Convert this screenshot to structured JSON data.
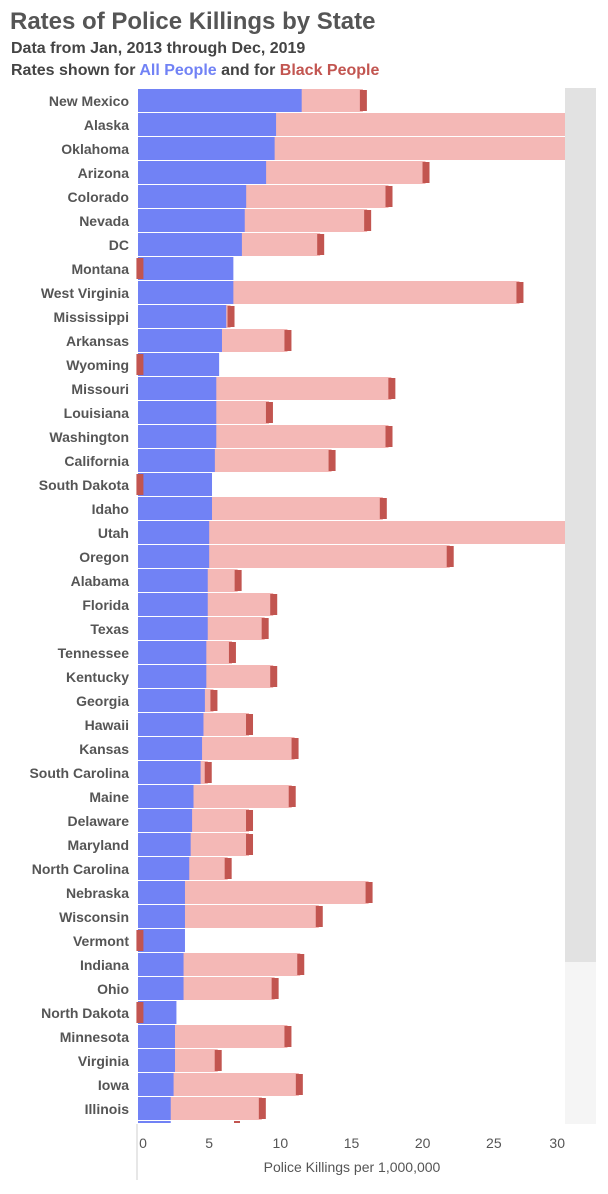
{
  "chart_data": {
    "type": "bar",
    "title": "Rates of Police Killings by State",
    "subtitle_line1": "Data from Jan, 2013 through Dec, 2019",
    "subtitle_prefix": "Rates shown for ",
    "subtitle_mid": " and for ",
    "xlabel": "Police Killings per 1,000,000",
    "xlim": [
      0,
      30
    ],
    "x_ticks": [
      "0",
      "5",
      "10",
      "15",
      "20",
      "25",
      "30"
    ],
    "x_tick_values": [
      0,
      5,
      10,
      15,
      20,
      25,
      30
    ],
    "orientation": "horizontal",
    "categories": [
      "New Mexico",
      "Alaska",
      "Oklahoma",
      "Arizona",
      "Colorado",
      "Nevada",
      "DC",
      "Montana",
      "West Virginia",
      "Mississippi",
      "Arkansas",
      "Wyoming",
      "Missouri",
      "Louisiana",
      "Washington",
      "California",
      "South Dakota",
      "Idaho",
      "Utah",
      "Oregon",
      "Alabama",
      "Florida",
      "Texas",
      "Tennessee",
      "Kentucky",
      "Georgia",
      "Hawaii",
      "Kansas",
      "South Carolina",
      "Maine",
      "Delaware",
      "Maryland",
      "North Carolina",
      "Nebraska",
      "Wisconsin",
      "Vermont",
      "Indiana",
      "Ohio",
      "North Dakota",
      "Minnesota",
      "Virginia",
      "Iowa",
      "Illinois"
    ],
    "series": [
      {
        "name": "All People",
        "color": "#7182f5",
        "values": [
          11.5,
          9.7,
          9.6,
          9.0,
          7.6,
          7.5,
          7.3,
          6.7,
          6.7,
          6.2,
          5.9,
          5.7,
          5.5,
          5.5,
          5.5,
          5.4,
          5.2,
          5.2,
          5.0,
          5.0,
          4.9,
          4.9,
          4.9,
          4.8,
          4.8,
          4.7,
          4.6,
          4.5,
          4.4,
          3.9,
          3.8,
          3.7,
          3.6,
          3.3,
          3.3,
          3.3,
          3.2,
          3.2,
          2.7,
          2.6,
          2.6,
          2.5,
          2.3
        ]
      },
      {
        "name": "Black People",
        "color": "#c25550",
        "light_color": "#f4b8b6",
        "values": [
          15.8,
          30.5,
          30.5,
          20.2,
          17.6,
          16.1,
          12.8,
          0.1,
          26.8,
          6.5,
          10.5,
          0.1,
          17.8,
          9.2,
          17.6,
          13.6,
          0.1,
          17.2,
          30.5,
          21.9,
          7.0,
          9.5,
          8.9,
          6.6,
          9.5,
          5.3,
          7.8,
          11.0,
          4.9,
          10.8,
          7.8,
          7.8,
          6.3,
          16.2,
          12.7,
          0.1,
          11.4,
          9.6,
          0.1,
          10.5,
          5.6,
          11.3,
          8.7
        ]
      }
    ]
  }
}
